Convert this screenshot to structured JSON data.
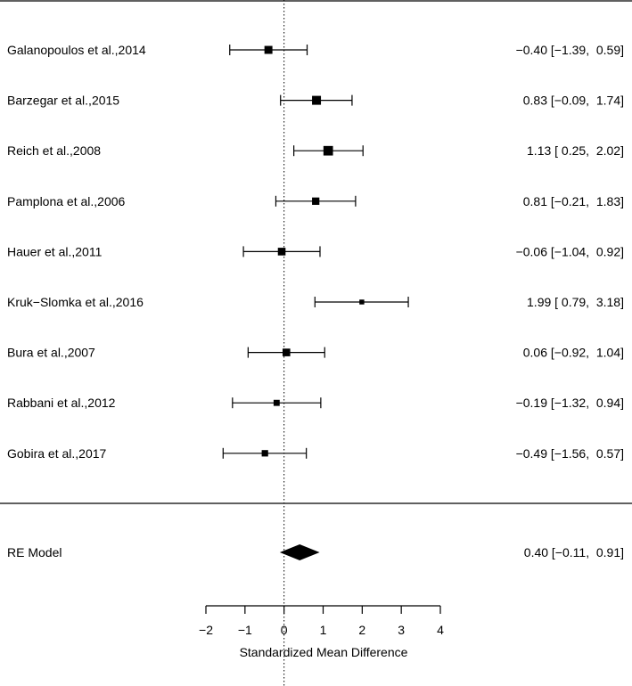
{
  "chart_data": {
    "type": "forest",
    "xlabel": "Standardized Mean Difference",
    "xlim": [
      -2,
      4
    ],
    "ticks": [
      -2,
      -1,
      0,
      1,
      2,
      3,
      4
    ],
    "tick_labels": [
      "−2",
      "−1",
      "0",
      "1",
      "2",
      "3",
      "4"
    ],
    "reference_line": 0,
    "studies": [
      {
        "label": "Galanopoulos et al.,2014",
        "estimate": -0.4,
        "ci_low": -1.39,
        "ci_high": 0.59,
        "text": "−0.40 [−1.39,  0.59]",
        "weight": 0.85
      },
      {
        "label": "Barzegar et al.,2015",
        "estimate": 0.83,
        "ci_low": -0.09,
        "ci_high": 1.74,
        "text": "0.83 [−0.09,  1.74]",
        "weight": 1.0
      },
      {
        "label": "Reich et al.,2008",
        "estimate": 1.13,
        "ci_low": 0.25,
        "ci_high": 2.02,
        "text": "1.13 [ 0.25,  2.02]",
        "weight": 1.1
      },
      {
        "label": "Pamplona et al.,2006",
        "estimate": 0.81,
        "ci_low": -0.21,
        "ci_high": 1.83,
        "text": "0.81 [−0.21,  1.83]",
        "weight": 0.75
      },
      {
        "label": "Hauer et al.,2011",
        "estimate": -0.06,
        "ci_low": -1.04,
        "ci_high": 0.92,
        "text": "−0.06 [−1.04,  0.92]",
        "weight": 0.8
      },
      {
        "label": "Kruk−Slomka et al.,2016",
        "estimate": 1.99,
        "ci_low": 0.79,
        "ci_high": 3.18,
        "text": "1.99 [ 0.79,  3.18]",
        "weight": 0.35
      },
      {
        "label": "Bura et al.,2007",
        "estimate": 0.06,
        "ci_low": -0.92,
        "ci_high": 1.04,
        "text": "0.06 [−0.92,  1.04]",
        "weight": 0.8
      },
      {
        "label": "Rabbani et al.,2012",
        "estimate": -0.19,
        "ci_low": -1.32,
        "ci_high": 0.94,
        "text": "−0.19 [−1.32,  0.94]",
        "weight": 0.55
      },
      {
        "label": "Gobira et al.,2017",
        "estimate": -0.49,
        "ci_low": -1.56,
        "ci_high": 0.57,
        "text": "−0.49 [−1.56,  0.57]",
        "weight": 0.6
      }
    ],
    "summary": {
      "label": "RE Model",
      "estimate": 0.4,
      "ci_low": -0.11,
      "ci_high": 0.91,
      "text": "0.40 [−0.11,  0.91]"
    }
  }
}
